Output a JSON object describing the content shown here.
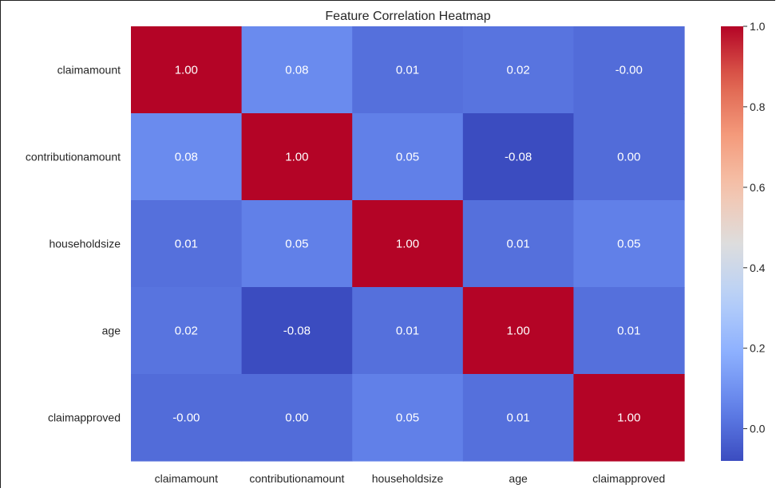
{
  "chart_data": {
    "type": "heatmap",
    "title": "Feature Correlation Heatmap",
    "xlabel": "",
    "ylabel": "",
    "x_categories": [
      "claimamount",
      "contributionamount",
      "householdsize",
      "age",
      "claimapproved"
    ],
    "y_categories": [
      "claimamount",
      "contributionamount",
      "householdsize",
      "age",
      "claimapproved"
    ],
    "values": [
      [
        1.0,
        0.08,
        0.01,
        0.02,
        -0.0
      ],
      [
        0.08,
        1.0,
        0.05,
        -0.08,
        0.0
      ],
      [
        0.01,
        0.05,
        1.0,
        0.01,
        0.05
      ],
      [
        0.02,
        -0.08,
        0.01,
        1.0,
        0.01
      ],
      [
        -0.0,
        0.0,
        0.05,
        0.01,
        1.0
      ]
    ],
    "value_format": "0.00",
    "colormap": "coolwarm",
    "vmin": -0.08,
    "vmax": 1.0,
    "colorbar_ticks": [
      0.0,
      0.2,
      0.4,
      0.6,
      0.8,
      1.0
    ],
    "colorbar_tick_labels": [
      "0.0",
      "0.2",
      "0.4",
      "0.6",
      "0.8",
      "1.0"
    ],
    "annotation_colors": {
      "light": "#ffffff"
    },
    "grid": false,
    "colorbar_position": "right"
  }
}
